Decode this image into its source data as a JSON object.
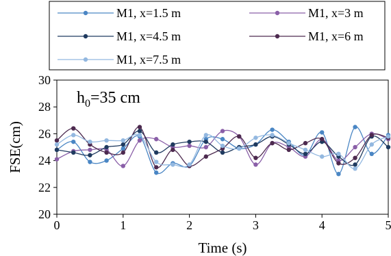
{
  "chart_data": {
    "type": "line",
    "annotation": {
      "main": "h",
      "sub": "0",
      "rest": "=35 cm"
    },
    "xlabel": "Time (s)",
    "ylabel": "FSE(cm)",
    "xlim": [
      0,
      5
    ],
    "ylim": [
      20,
      30
    ],
    "xticks": [
      0,
      1,
      2,
      3,
      4,
      5
    ],
    "yticks": [
      20,
      22,
      24,
      26,
      28,
      30
    ],
    "grid": false,
    "legend_position": "top",
    "x": [
      0,
      0.25,
      0.5,
      0.75,
      1,
      1.25,
      1.5,
      1.75,
      2,
      2.25,
      2.5,
      2.75,
      3,
      3.25,
      3.5,
      3.75,
      4,
      4.25,
      4.5,
      4.75,
      5
    ],
    "series": [
      {
        "name": "M1, x=1.5 m",
        "color": "#4a86c4",
        "values": [
          24.8,
          25.4,
          23.9,
          24.0,
          24.9,
          25.8,
          23.1,
          23.8,
          23.6,
          25.6,
          25.6,
          24.9,
          25.2,
          26.3,
          25.4,
          24.4,
          26.1,
          23.0,
          26.5,
          24.5,
          25.9
        ]
      },
      {
        "name": "M1, x=3 m",
        "color": "#8a5fa8",
        "values": [
          24.1,
          24.7,
          24.8,
          24.8,
          23.6,
          25.5,
          25.6,
          25.0,
          25.1,
          25.0,
          26.2,
          25.8,
          23.7,
          25.3,
          25.0,
          24.3,
          25.6,
          24.0,
          25.0,
          26.0,
          25.6
        ]
      },
      {
        "name": "M1, x=4.5 m",
        "color": "#1f3a5f",
        "values": [
          24.8,
          24.6,
          24.4,
          25.0,
          25.2,
          26.2,
          24.6,
          25.2,
          25.4,
          25.4,
          24.6,
          25.0,
          25.2,
          25.8,
          25.2,
          24.5,
          25.4,
          24.3,
          23.7,
          25.8,
          25.0
        ]
      },
      {
        "name": "M1, x=6 m",
        "color": "#4d2a4f",
        "values": [
          25.5,
          26.4,
          25.2,
          24.6,
          24.6,
          26.5,
          23.5,
          24.8,
          23.6,
          24.3,
          24.9,
          25.8,
          24.2,
          25.3,
          24.8,
          25.3,
          25.6,
          23.8,
          24.2,
          25.9,
          25.7
        ]
      },
      {
        "name": "M1, x=7.5 m",
        "color": "#93b8e0",
        "values": [
          25.2,
          25.9,
          25.4,
          25.5,
          25.5,
          25.9,
          23.9,
          23.7,
          23.7,
          25.9,
          25.1,
          24.9,
          25.7,
          25.9,
          25.3,
          24.8,
          24.3,
          24.5,
          23.4,
          25.2,
          25.8
        ]
      }
    ]
  }
}
